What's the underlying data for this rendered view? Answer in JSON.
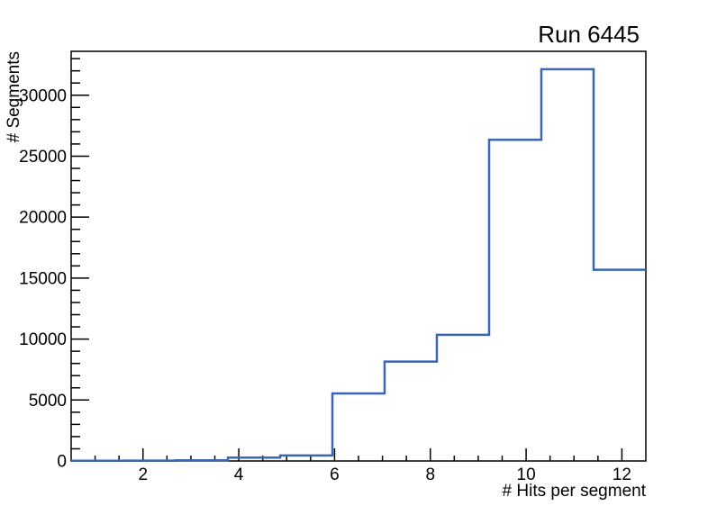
{
  "chart_data": {
    "type": "histogram",
    "title": "Run 6445",
    "xlabel": "# Hits per segment",
    "ylabel": "# Segments",
    "xlim": [
      0.5,
      12.5
    ],
    "ylim": [
      0,
      33600
    ],
    "grid": false,
    "legend": false,
    "bin_edges": [
      0.5,
      1.591,
      2.682,
      3.773,
      4.864,
      5.955,
      7.045,
      8.136,
      9.227,
      10.318,
      11.409,
      12.5
    ],
    "values": [
      20,
      30,
      60,
      280,
      450,
      5540,
      8150,
      10350,
      26340,
      32130,
      15680
    ],
    "x_ticks": {
      "major": [
        2,
        4,
        6,
        8,
        10,
        12
      ],
      "labels": [
        "2",
        "4",
        "6",
        "8",
        "10",
        "12"
      ],
      "minor_step": 0.5
    },
    "y_ticks": {
      "major": [
        0,
        5000,
        10000,
        15000,
        20000,
        25000,
        30000
      ],
      "labels": [
        "0",
        "5000",
        "10000",
        "15000",
        "20000",
        "25000",
        "30000"
      ],
      "minor_step": 1000
    },
    "colors": {
      "line": "#3a66b2",
      "axis": "#000000",
      "background": "#ffffff"
    }
  }
}
